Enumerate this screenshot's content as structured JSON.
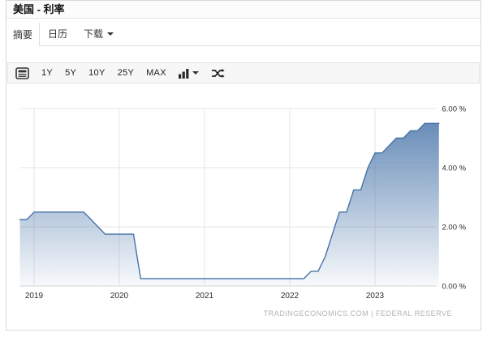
{
  "header": {
    "title": "美国 - 利率"
  },
  "tabs": [
    {
      "label": "摘要",
      "active": true
    },
    {
      "label": "日历",
      "active": false
    },
    {
      "label": "下载",
      "active": false,
      "has_caret": true
    }
  ],
  "toolbar": {
    "range_buttons": [
      "1Y",
      "5Y",
      "10Y",
      "25Y",
      "MAX"
    ],
    "icons": [
      "news-icon",
      "column-chart-icon",
      "caret-down-icon",
      "compare-icon"
    ]
  },
  "chart_data": {
    "type": "area",
    "title": "",
    "xlabel": "",
    "ylabel": "",
    "x_ticks": [
      {
        "value": 2019,
        "label": "2019"
      },
      {
        "value": 2020,
        "label": "2020"
      },
      {
        "value": 2021,
        "label": "2021"
      },
      {
        "value": 2022,
        "label": "2022"
      },
      {
        "value": 2023,
        "label": "2023"
      }
    ],
    "y_ticks": [
      {
        "value": 0,
        "label": "0.00 %"
      },
      {
        "value": 2,
        "label": "2.00 %"
      },
      {
        "value": 4,
        "label": "4.00 %"
      },
      {
        "value": 6,
        "label": "6.00 %"
      }
    ],
    "ylim": [
      0,
      6
    ],
    "grid": true,
    "legend": "none",
    "attribution": "TRADINGECONOMICS.COM  |  FEDERAL RESERVE",
    "colors": {
      "line": "#4572a7",
      "area_top": "rgba(69,114,167,0.88)",
      "area_bottom": "rgba(69,114,167,0.04)",
      "grid": "#e6e6e6",
      "axis_line": "#d5d5d5",
      "tick_text": "#2b2b2b",
      "attribution_text": "#b3b3b3"
    },
    "points": [
      [
        "2018-10",
        2.25
      ],
      [
        "2018-11",
        2.25
      ],
      [
        "2018-12",
        2.5
      ],
      [
        "2019-01",
        2.5
      ],
      [
        "2019-02",
        2.5
      ],
      [
        "2019-03",
        2.5
      ],
      [
        "2019-04",
        2.5
      ],
      [
        "2019-05",
        2.5
      ],
      [
        "2019-06",
        2.5
      ],
      [
        "2019-07",
        2.5
      ],
      [
        "2019-08",
        2.25
      ],
      [
        "2019-09",
        2.0
      ],
      [
        "2019-10",
        1.75
      ],
      [
        "2019-11",
        1.75
      ],
      [
        "2019-12",
        1.75
      ],
      [
        "2020-01",
        1.75
      ],
      [
        "2020-02",
        1.75
      ],
      [
        "2020-03",
        0.25
      ],
      [
        "2020-04",
        0.25
      ],
      [
        "2020-05",
        0.25
      ],
      [
        "2020-06",
        0.25
      ],
      [
        "2020-07",
        0.25
      ],
      [
        "2020-08",
        0.25
      ],
      [
        "2020-09",
        0.25
      ],
      [
        "2020-10",
        0.25
      ],
      [
        "2020-11",
        0.25
      ],
      [
        "2020-12",
        0.25
      ],
      [
        "2021-01",
        0.25
      ],
      [
        "2021-02",
        0.25
      ],
      [
        "2021-03",
        0.25
      ],
      [
        "2021-04",
        0.25
      ],
      [
        "2021-05",
        0.25
      ],
      [
        "2021-06",
        0.25
      ],
      [
        "2021-07",
        0.25
      ],
      [
        "2021-08",
        0.25
      ],
      [
        "2021-09",
        0.25
      ],
      [
        "2021-10",
        0.25
      ],
      [
        "2021-11",
        0.25
      ],
      [
        "2021-12",
        0.25
      ],
      [
        "2022-01",
        0.25
      ],
      [
        "2022-02",
        0.25
      ],
      [
        "2022-03",
        0.5
      ],
      [
        "2022-04",
        0.5
      ],
      [
        "2022-05",
        1.0
      ],
      [
        "2022-06",
        1.75
      ],
      [
        "2022-07",
        2.5
      ],
      [
        "2022-08",
        2.5
      ],
      [
        "2022-09",
        3.25
      ],
      [
        "2022-10",
        3.25
      ],
      [
        "2022-11",
        4.0
      ],
      [
        "2022-12",
        4.5
      ],
      [
        "2023-01",
        4.5
      ],
      [
        "2023-02",
        4.75
      ],
      [
        "2023-03",
        5.0
      ],
      [
        "2023-04",
        5.0
      ],
      [
        "2023-05",
        5.25
      ],
      [
        "2023-06",
        5.25
      ],
      [
        "2023-07",
        5.5
      ],
      [
        "2023-08",
        5.5
      ],
      [
        "2023-09",
        5.5
      ]
    ]
  }
}
